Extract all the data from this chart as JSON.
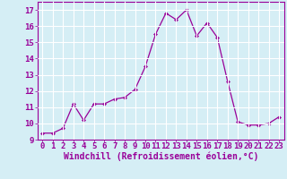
{
  "x": [
    0,
    1,
    2,
    3,
    4,
    5,
    6,
    7,
    8,
    9,
    10,
    11,
    12,
    13,
    14,
    15,
    16,
    17,
    18,
    19,
    20,
    21,
    22,
    23
  ],
  "y": [
    9.4,
    9.4,
    9.7,
    11.2,
    10.2,
    11.2,
    11.2,
    11.5,
    11.6,
    12.1,
    13.5,
    15.5,
    16.8,
    16.4,
    17.0,
    15.4,
    16.2,
    15.3,
    12.6,
    10.1,
    9.9,
    9.9,
    10.0,
    10.4
  ],
  "line_color": "#990099",
  "marker": "D",
  "marker_size": 2,
  "bg_color": "#d5eef5",
  "grid_color": "#ffffff",
  "xlabel": "Windchill (Refroidissement éolien,°C)",
  "xlabel_color": "#990099",
  "tick_color": "#990099",
  "ylim": [
    9,
    17.5
  ],
  "xlim": [
    -0.5,
    23.5
  ],
  "yticks": [
    9,
    10,
    11,
    12,
    13,
    14,
    15,
    16,
    17
  ],
  "xticks": [
    0,
    1,
    2,
    3,
    4,
    5,
    6,
    7,
    8,
    9,
    10,
    11,
    12,
    13,
    14,
    15,
    16,
    17,
    18,
    19,
    20,
    21,
    22,
    23
  ],
  "xtick_labels": [
    "0",
    "1",
    "2",
    "3",
    "4",
    "5",
    "6",
    "7",
    "8",
    "9",
    "10",
    "11",
    "12",
    "13",
    "14",
    "15",
    "16",
    "17",
    "18",
    "19",
    "20",
    "21",
    "22",
    "23"
  ],
  "ytick_labels": [
    "9",
    "10",
    "11",
    "12",
    "13",
    "14",
    "15",
    "16",
    "17"
  ],
  "tick_fontsize": 6.5,
  "xlabel_fontsize": 7
}
